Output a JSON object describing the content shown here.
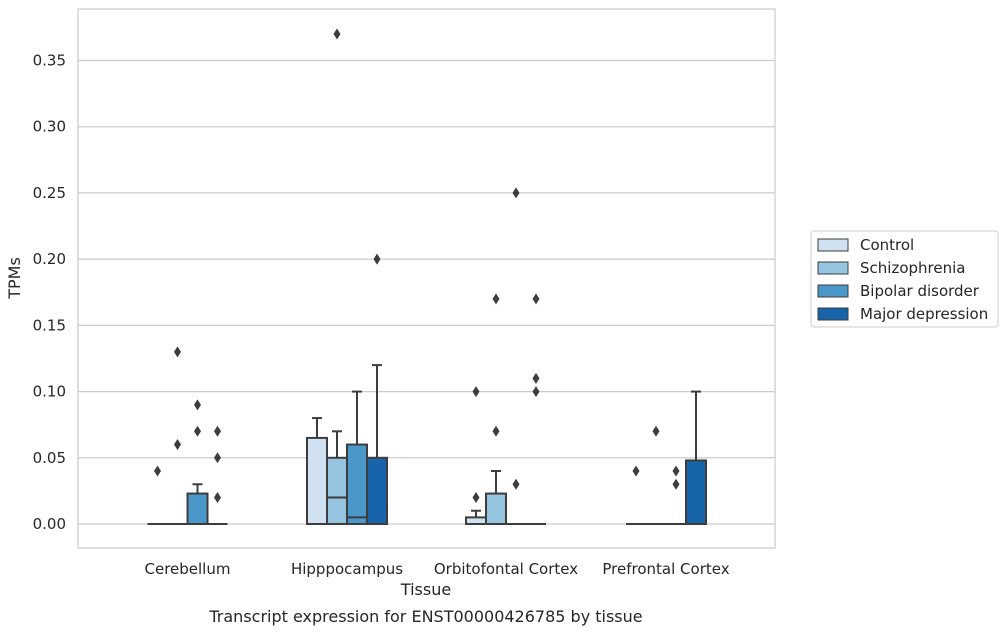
{
  "chart_data": {
    "type": "box",
    "xlabel": "Tissue",
    "ylabel": "TPMs",
    "caption": "Transcript expression for ENST00000426785 by tissue",
    "ylim": [
      -0.018,
      0.39
    ],
    "yticks": [
      0.0,
      0.05,
      0.1,
      0.15,
      0.2,
      0.25,
      0.3,
      0.35
    ],
    "ytick_labels": [
      "0.00",
      "0.05",
      "0.10",
      "0.15",
      "0.20",
      "0.25",
      "0.30",
      "0.35"
    ],
    "categories": [
      "Cerebellum",
      "Hipppocampus",
      "Orbitofontal Cortex",
      "Prefrontal Cortex"
    ],
    "grid": "horizontal",
    "legend_position": "right",
    "series": [
      {
        "name": "Control",
        "color": "#d0e1f2",
        "boxes": [
          {
            "q1": 0,
            "median": 0,
            "q3": 0,
            "whisker_low": 0,
            "whisker_high": 0,
            "outliers": [
              0.04
            ]
          },
          {
            "q1": 0,
            "median": 0,
            "q3": 0.065,
            "whisker_low": 0,
            "whisker_high": 0.08,
            "outliers": []
          },
          {
            "q1": 0,
            "median": 0,
            "q3": 0.005,
            "whisker_low": 0,
            "whisker_high": 0.01,
            "outliers": [
              0.1,
              0.02
            ]
          },
          {
            "q1": 0,
            "median": 0,
            "q3": 0,
            "whisker_low": 0,
            "whisker_high": 0,
            "outliers": [
              0.04
            ]
          }
        ]
      },
      {
        "name": "Schizophrenia",
        "color": "#94c4df",
        "boxes": [
          {
            "q1": 0,
            "median": 0,
            "q3": 0,
            "whisker_low": 0,
            "whisker_high": 0,
            "outliers": [
              0.13,
              0.06
            ]
          },
          {
            "q1": 0,
            "median": 0.02,
            "q3": 0.05,
            "whisker_low": 0,
            "whisker_high": 0.07,
            "outliers": [
              0.37
            ]
          },
          {
            "q1": 0,
            "median": 0,
            "q3": 0.023,
            "whisker_low": 0,
            "whisker_high": 0.04,
            "outliers": [
              0.17,
              0.07
            ]
          },
          {
            "q1": 0,
            "median": 0,
            "q3": 0,
            "whisker_low": 0,
            "whisker_high": 0,
            "outliers": [
              0.07
            ]
          }
        ]
      },
      {
        "name": "Bipolar disorder",
        "color": "#4a98c9",
        "boxes": [
          {
            "q1": 0,
            "median": 0,
            "q3": 0.023,
            "whisker_low": 0,
            "whisker_high": 0.03,
            "outliers": [
              0.09,
              0.07
            ]
          },
          {
            "q1": 0,
            "median": 0.005,
            "q3": 0.06,
            "whisker_low": 0,
            "whisker_high": 0.1,
            "outliers": []
          },
          {
            "q1": 0,
            "median": 0,
            "q3": 0,
            "whisker_low": 0,
            "whisker_high": 0,
            "outliers": [
              0.25,
              0.03
            ]
          },
          {
            "q1": 0,
            "median": 0,
            "q3": 0,
            "whisker_low": 0,
            "whisker_high": 0,
            "outliers": [
              0.04,
              0.03
            ]
          }
        ]
      },
      {
        "name": "Major depression",
        "color": "#1764ab",
        "boxes": [
          {
            "q1": 0,
            "median": 0,
            "q3": 0,
            "whisker_low": 0,
            "whisker_high": 0,
            "outliers": [
              0.07,
              0.05,
              0.02
            ]
          },
          {
            "q1": 0,
            "median": 0,
            "q3": 0.05,
            "whisker_low": 0,
            "whisker_high": 0.12,
            "outliers": [
              0.2
            ]
          },
          {
            "q1": 0,
            "median": 0,
            "q3": 0,
            "whisker_low": 0,
            "whisker_high": 0,
            "outliers": [
              0.17,
              0.11,
              0.1
            ]
          },
          {
            "q1": 0,
            "median": 0,
            "q3": 0.048,
            "whisker_low": 0,
            "whisker_high": 0.1,
            "outliers": []
          }
        ]
      }
    ]
  }
}
